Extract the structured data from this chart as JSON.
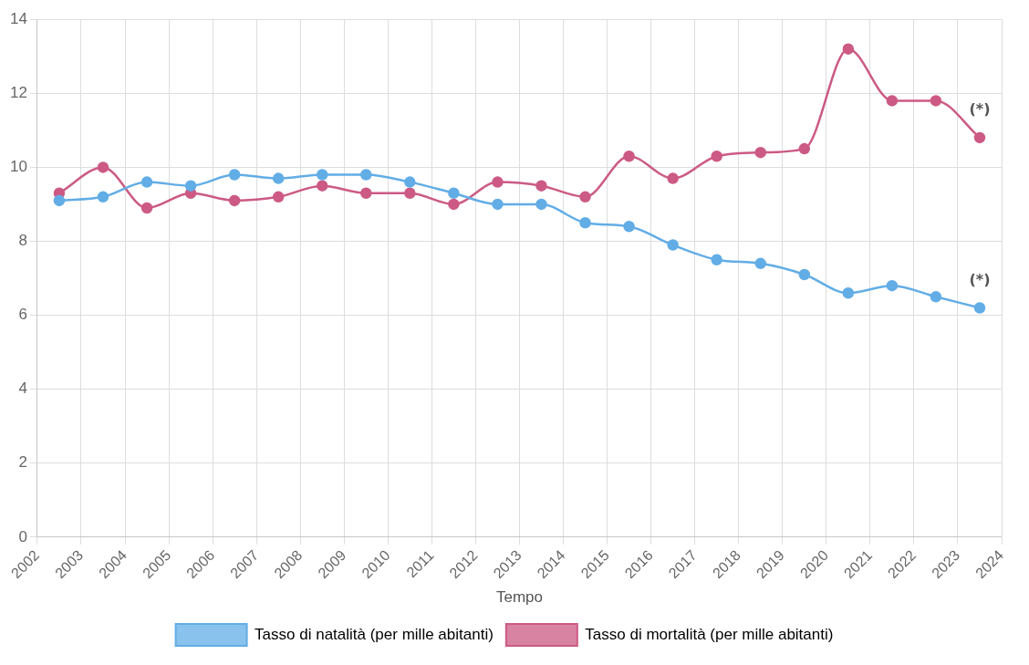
{
  "chart_data": {
    "type": "line",
    "xlabel": "Tempo",
    "x": [
      2002.5,
      2003.5,
      2004.5,
      2005.5,
      2006.5,
      2007.5,
      2008.5,
      2009.5,
      2010.5,
      2011.5,
      2012.5,
      2013.5,
      2014.5,
      2015.5,
      2016.5,
      2017.5,
      2018.5,
      2019.5,
      2020.5,
      2021.5,
      2022.5,
      2023.5
    ],
    "series": [
      {
        "name": "Tasso di natalità (per mille abitanti)",
        "color": "#62ade6",
        "values": [
          9.1,
          9.2,
          9.6,
          9.5,
          9.8,
          9.7,
          9.8,
          9.8,
          9.6,
          9.3,
          9.0,
          9.0,
          8.5,
          8.4,
          7.9,
          7.5,
          7.4,
          7.1,
          6.6,
          6.8,
          6.5,
          6.2
        ]
      },
      {
        "name": "Tasso di mortalità (per mille abitanti)",
        "color": "#cc5a84",
        "values": [
          9.3,
          10.0,
          8.9,
          9.3,
          9.1,
          9.2,
          9.5,
          9.3,
          9.3,
          9.0,
          9.6,
          9.5,
          9.2,
          10.3,
          9.7,
          10.3,
          10.4,
          10.5,
          13.2,
          11.8,
          11.8,
          10.8
        ]
      }
    ],
    "xlim": [
      2002,
      2024
    ],
    "xticks": [
      2002,
      2003,
      2004,
      2005,
      2006,
      2007,
      2008,
      2009,
      2010,
      2011,
      2012,
      2013,
      2014,
      2015,
      2016,
      2017,
      2018,
      2019,
      2020,
      2021,
      2022,
      2023,
      2024
    ],
    "ylim": [
      0,
      14
    ],
    "yticks": [
      0,
      2,
      4,
      6,
      8,
      10,
      12,
      14
    ],
    "annotations": [
      {
        "text": "(*)",
        "x": 2023.5,
        "y": 6.2
      },
      {
        "text": "(*)",
        "x": 2023.5,
        "y": 10.8
      }
    ],
    "grid": true,
    "legend": "bottom",
    "marker": "circle",
    "line_style": "solid"
  }
}
